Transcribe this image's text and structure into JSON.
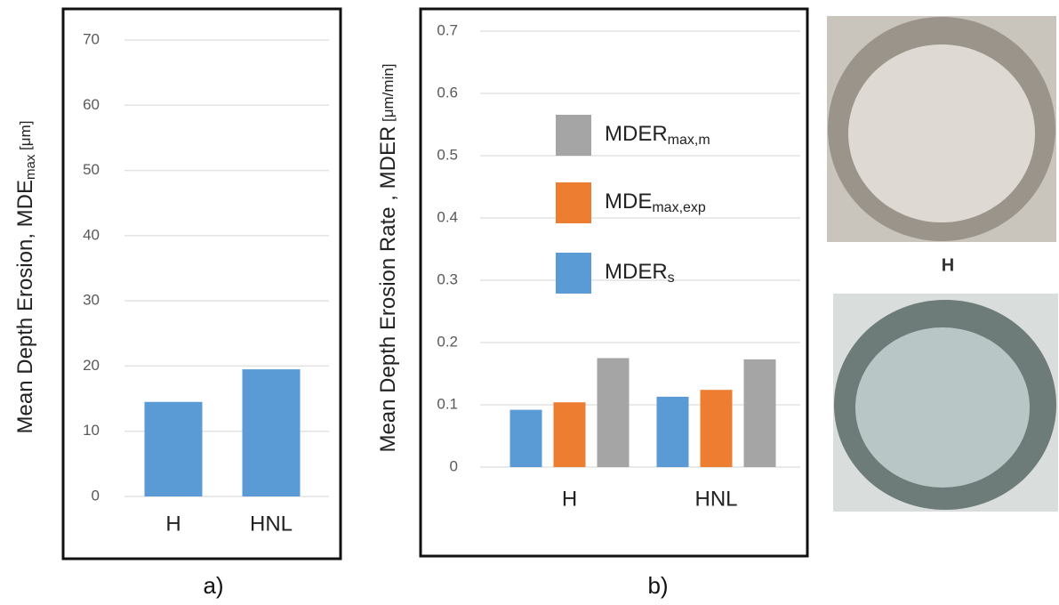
{
  "chart_data": [
    {
      "type": "bar",
      "ylabel": {
        "main": "Mean Depth Erosion, MDE",
        "sub": "max",
        "unit": " [μm]"
      },
      "categories": [
        "H",
        "HNL"
      ],
      "values": [
        14.5,
        19.5
      ],
      "color": "#5b9bd5",
      "ylim": [
        0,
        70
      ],
      "yticks": [
        0,
        10,
        20,
        30,
        40,
        50,
        60,
        70
      ],
      "grid": true,
      "caption": "a)"
    },
    {
      "type": "grouped-bar",
      "ylabel": {
        "main": "Mean Depth Erosion Rate , MDER",
        "unit": " [μm/min]"
      },
      "categories": [
        "H",
        "HNL"
      ],
      "series": [
        {
          "name": "MDER",
          "sub": "s",
          "color": "#5b9bd5",
          "values": [
            0.092,
            0.113
          ]
        },
        {
          "name": "MDE",
          "sub": "max,exp",
          "color": "#ed7d31",
          "values": [
            0.104,
            0.124
          ]
        },
        {
          "name": "MDER",
          "sub": "max,m",
          "color": "#a5a5a5",
          "values": [
            0.175,
            0.173
          ]
        }
      ],
      "ylim": [
        0,
        0.7
      ],
      "yticks": [
        0,
        0.1,
        0.2,
        0.3,
        0.4,
        0.5,
        0.6,
        0.7
      ],
      "grid": true,
      "caption": "b)"
    }
  ],
  "photos": {
    "top_label": "H"
  }
}
